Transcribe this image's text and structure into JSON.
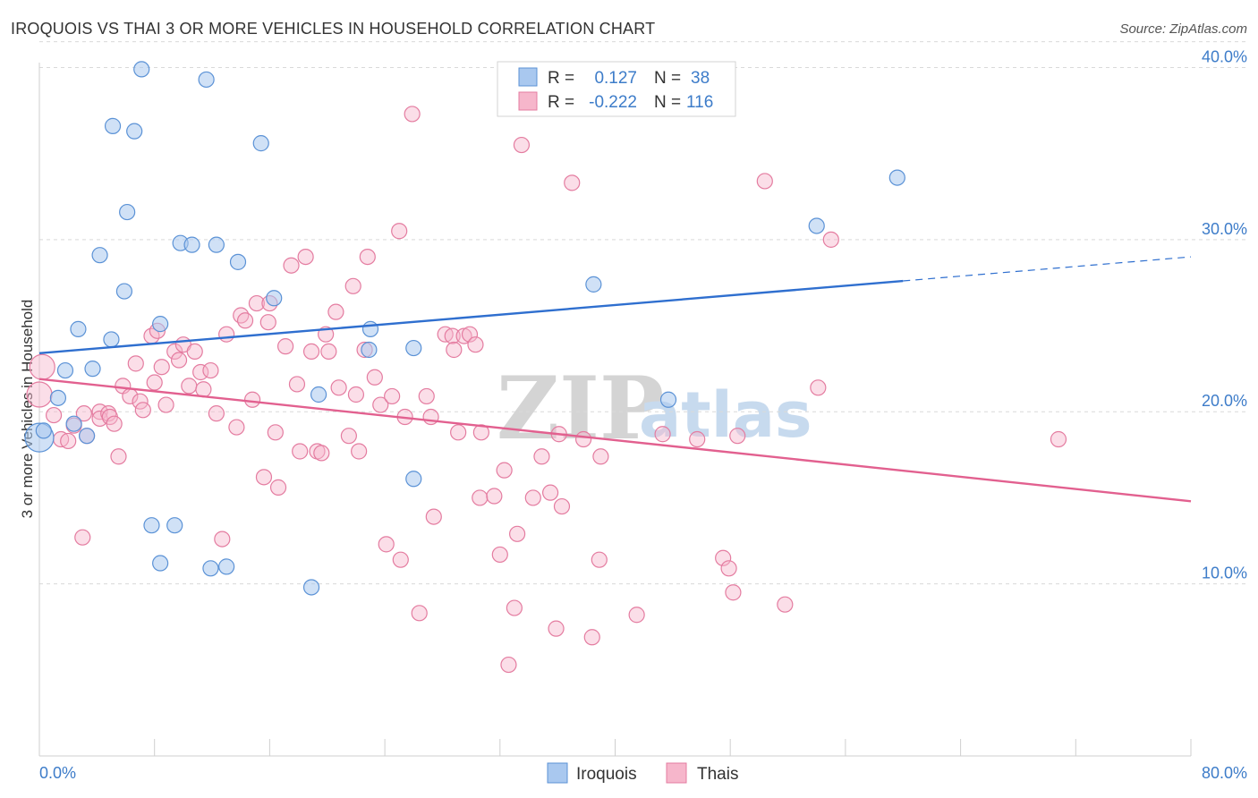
{
  "title": "IROQUOIS VS THAI 3 OR MORE VEHICLES IN HOUSEHOLD CORRELATION CHART",
  "source": "Source: ZipAtlas.com",
  "legend_top": {
    "rows": [
      {
        "r_label": "R =",
        "r_value": "0.127",
        "n_label": "N =",
        "n_value": "38"
      },
      {
        "r_label": "R =",
        "r_value": "-0.222",
        "n_label": "N =",
        "n_value": "116"
      }
    ]
  },
  "legend_bottom": [
    "Iroquois",
    "Thais"
  ],
  "watermark": {
    "zip": "ZIP",
    "atlas": "atlas"
  },
  "colors": {
    "iroquois_fill": "#a9c8ef",
    "iroquois_stroke": "#5b92d6",
    "iroquois_line": "#2f6fcf",
    "thais_fill": "#f6b6cb",
    "thais_stroke": "#e47ca0",
    "thais_line": "#e2608f",
    "tick": "#3d7cc9",
    "grid": "#d9d9d9"
  },
  "chart_data": {
    "type": "scatter",
    "title": "IROQUOIS VS THAI 3 OR MORE VEHICLES IN HOUSEHOLD CORRELATION CHART",
    "xlabel": "",
    "ylabel": "3 or more Vehicles in Household",
    "xlim": [
      0,
      80
    ],
    "ylim": [
      0,
      42
    ],
    "x_tick_labels": [
      "0.0%",
      "80.0%"
    ],
    "y_ticks": [
      10,
      20,
      30,
      40
    ],
    "y_tick_labels": [
      "10.0%",
      "20.0%",
      "30.0%",
      "40.0%"
    ],
    "grid": "horizontal dashed",
    "legend_position": "top-center",
    "series": [
      {
        "name": "Iroquois",
        "R": 0.127,
        "N": 38,
        "trend": {
          "x0": 0,
          "y0": 23.4,
          "x1": 60,
          "y1": 27.6,
          "dashed_to_x": 80,
          "dashed_to_y": 29.0
        },
        "points": [
          [
            0.0,
            18.5
          ],
          [
            0.3,
            18.9
          ],
          [
            1.3,
            20.8
          ],
          [
            1.8,
            22.4
          ],
          [
            2.4,
            19.3
          ],
          [
            2.7,
            24.8
          ],
          [
            3.3,
            18.6
          ],
          [
            3.7,
            22.5
          ],
          [
            4.2,
            29.1
          ],
          [
            5.0,
            24.2
          ],
          [
            5.1,
            36.6
          ],
          [
            5.9,
            27.0
          ],
          [
            6.1,
            31.6
          ],
          [
            6.6,
            36.3
          ],
          [
            7.1,
            39.9
          ],
          [
            7.8,
            13.4
          ],
          [
            8.4,
            11.2
          ],
          [
            8.4,
            25.1
          ],
          [
            9.4,
            13.4
          ],
          [
            9.8,
            29.8
          ],
          [
            10.6,
            29.7
          ],
          [
            11.6,
            39.3
          ],
          [
            11.9,
            10.9
          ],
          [
            12.3,
            29.7
          ],
          [
            13.0,
            11.0
          ],
          [
            13.8,
            28.7
          ],
          [
            15.4,
            35.6
          ],
          [
            16.3,
            26.6
          ],
          [
            18.9,
            9.8
          ],
          [
            19.4,
            21.0
          ],
          [
            22.9,
            23.6
          ],
          [
            23.0,
            24.8
          ],
          [
            26.0,
            23.7
          ],
          [
            26.0,
            16.1
          ],
          [
            38.5,
            27.4
          ],
          [
            43.7,
            20.7
          ],
          [
            54.0,
            30.8
          ],
          [
            59.6,
            33.6
          ]
        ]
      },
      {
        "name": "Thais",
        "R": -0.222,
        "N": 116,
        "trend": {
          "x0": 0,
          "y0": 21.9,
          "x1": 80,
          "y1": 14.8
        },
        "points": [
          [
            0.0,
            21.0
          ],
          [
            0.2,
            22.6
          ],
          [
            1.0,
            19.8
          ],
          [
            1.5,
            18.4
          ],
          [
            2.0,
            18.3
          ],
          [
            2.4,
            19.2
          ],
          [
            3.1,
            19.9
          ],
          [
            3.0,
            12.7
          ],
          [
            3.3,
            18.6
          ],
          [
            4.2,
            20.0
          ],
          [
            4.2,
            19.6
          ],
          [
            4.8,
            19.9
          ],
          [
            4.9,
            19.7
          ],
          [
            5.2,
            19.3
          ],
          [
            5.5,
            17.4
          ],
          [
            5.8,
            21.5
          ],
          [
            6.3,
            20.9
          ],
          [
            6.7,
            22.8
          ],
          [
            7.0,
            20.6
          ],
          [
            7.2,
            20.1
          ],
          [
            7.8,
            24.4
          ],
          [
            8.0,
            21.7
          ],
          [
            8.2,
            24.7
          ],
          [
            8.5,
            22.6
          ],
          [
            8.8,
            20.4
          ],
          [
            9.4,
            23.5
          ],
          [
            9.7,
            23.0
          ],
          [
            10.0,
            23.9
          ],
          [
            10.4,
            21.5
          ],
          [
            10.8,
            23.5
          ],
          [
            11.2,
            22.3
          ],
          [
            11.4,
            21.3
          ],
          [
            11.9,
            22.4
          ],
          [
            12.3,
            19.9
          ],
          [
            12.7,
            12.6
          ],
          [
            13.0,
            24.5
          ],
          [
            13.7,
            19.1
          ],
          [
            14.0,
            25.6
          ],
          [
            14.3,
            25.3
          ],
          [
            14.8,
            20.7
          ],
          [
            15.1,
            26.3
          ],
          [
            15.6,
            16.2
          ],
          [
            15.9,
            25.2
          ],
          [
            16.0,
            26.3
          ],
          [
            16.4,
            18.8
          ],
          [
            16.6,
            15.6
          ],
          [
            17.1,
            23.8
          ],
          [
            17.5,
            28.5
          ],
          [
            17.9,
            21.6
          ],
          [
            18.1,
            17.7
          ],
          [
            18.5,
            29.0
          ],
          [
            18.9,
            23.5
          ],
          [
            19.3,
            17.7
          ],
          [
            19.6,
            17.6
          ],
          [
            19.9,
            24.5
          ],
          [
            20.1,
            23.5
          ],
          [
            20.6,
            25.8
          ],
          [
            20.8,
            21.4
          ],
          [
            21.5,
            18.6
          ],
          [
            21.8,
            27.3
          ],
          [
            22.0,
            21.0
          ],
          [
            22.2,
            17.7
          ],
          [
            22.6,
            23.6
          ],
          [
            22.8,
            29.0
          ],
          [
            23.3,
            22.0
          ],
          [
            23.7,
            20.4
          ],
          [
            24.1,
            12.3
          ],
          [
            24.5,
            20.9
          ],
          [
            25.0,
            30.5
          ],
          [
            25.1,
            11.4
          ],
          [
            25.4,
            19.7
          ],
          [
            25.9,
            37.3
          ],
          [
            26.4,
            8.3
          ],
          [
            26.9,
            20.9
          ],
          [
            27.2,
            19.7
          ],
          [
            27.4,
            13.9
          ],
          [
            28.2,
            24.5
          ],
          [
            28.7,
            24.4
          ],
          [
            28.8,
            23.6
          ],
          [
            29.1,
            18.8
          ],
          [
            29.5,
            24.4
          ],
          [
            29.9,
            24.5
          ],
          [
            30.3,
            23.9
          ],
          [
            30.6,
            15.0
          ],
          [
            30.7,
            18.8
          ],
          [
            31.6,
            15.1
          ],
          [
            32.0,
            11.7
          ],
          [
            32.3,
            16.6
          ],
          [
            32.6,
            5.3
          ],
          [
            33.0,
            8.6
          ],
          [
            33.2,
            12.9
          ],
          [
            33.5,
            35.5
          ],
          [
            34.3,
            15.0
          ],
          [
            34.9,
            17.4
          ],
          [
            35.5,
            15.3
          ],
          [
            35.9,
            7.4
          ],
          [
            36.1,
            18.7
          ],
          [
            36.3,
            14.5
          ],
          [
            37.0,
            33.3
          ],
          [
            37.8,
            18.4
          ],
          [
            38.4,
            6.9
          ],
          [
            38.9,
            11.4
          ],
          [
            39.0,
            17.4
          ],
          [
            41.5,
            8.2
          ],
          [
            43.3,
            18.7
          ],
          [
            45.7,
            18.4
          ],
          [
            47.5,
            11.5
          ],
          [
            47.9,
            10.9
          ],
          [
            48.2,
            9.5
          ],
          [
            48.5,
            18.6
          ],
          [
            50.4,
            33.4
          ],
          [
            51.8,
            8.8
          ],
          [
            54.1,
            21.4
          ],
          [
            55.0,
            30.0
          ],
          [
            70.8,
            18.4
          ]
        ]
      }
    ]
  }
}
